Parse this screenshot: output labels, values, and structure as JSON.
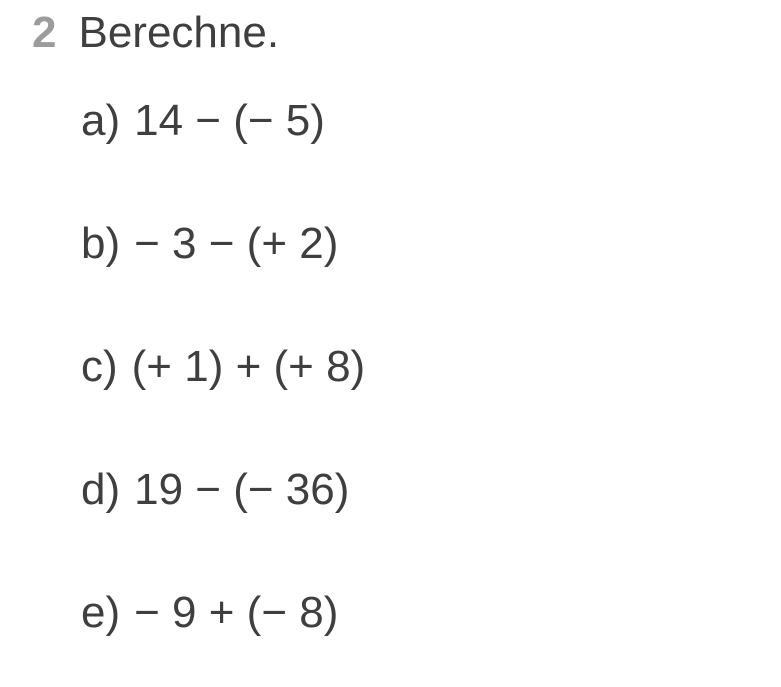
{
  "exercise": {
    "number": "2",
    "prompt": "Berechne.",
    "number_color": "#9c9c9c",
    "text_color": "#3f3f3f",
    "background_color": "#ffffff",
    "font_size_pt": 33,
    "items": [
      {
        "label": "a)",
        "expression": "14 − (− 5)"
      },
      {
        "label": "b)",
        "expression": "− 3 − (+ 2)"
      },
      {
        "label": "c)",
        "expression": "(+ 1) + (+ 8)"
      },
      {
        "label": "d)",
        "expression": "19 − (− 36)"
      },
      {
        "label": "e)",
        "expression": "− 9 + (− 8)"
      }
    ]
  }
}
